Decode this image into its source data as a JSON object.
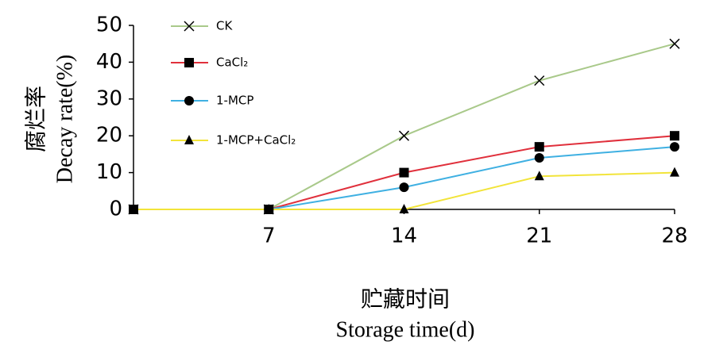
{
  "chart_data": {
    "type": "line",
    "y_label_cn": "腐烂率",
    "y_label": "Decay rate(%)",
    "x_label_cn": "贮藏时间",
    "x_label": "Storage time(d)",
    "x": [
      0,
      7,
      14,
      21,
      28
    ],
    "xlim": [
      0,
      28
    ],
    "xticks": [
      7,
      14,
      21,
      28
    ],
    "ylim": [
      0,
      50
    ],
    "yticks": [
      0,
      10,
      20,
      30,
      40,
      50
    ],
    "legend": "upper left",
    "series": [
      {
        "name": "CK",
        "color": "#a9c98a",
        "marker": "x",
        "values": [
          0,
          0,
          20,
          35,
          45
        ]
      },
      {
        "name": "CaCl₂",
        "color": "#e0303c",
        "marker": "square",
        "values": [
          0,
          0,
          10,
          17,
          20
        ]
      },
      {
        "name": "1-MCP",
        "color": "#3fb0e2",
        "marker": "circle",
        "values": [
          0,
          0,
          6,
          14,
          17
        ]
      },
      {
        "name": "1-MCP+CaCl₂",
        "color": "#f2e43a",
        "marker": "triangle",
        "values": [
          0,
          0,
          0,
          9,
          10
        ]
      }
    ]
  }
}
